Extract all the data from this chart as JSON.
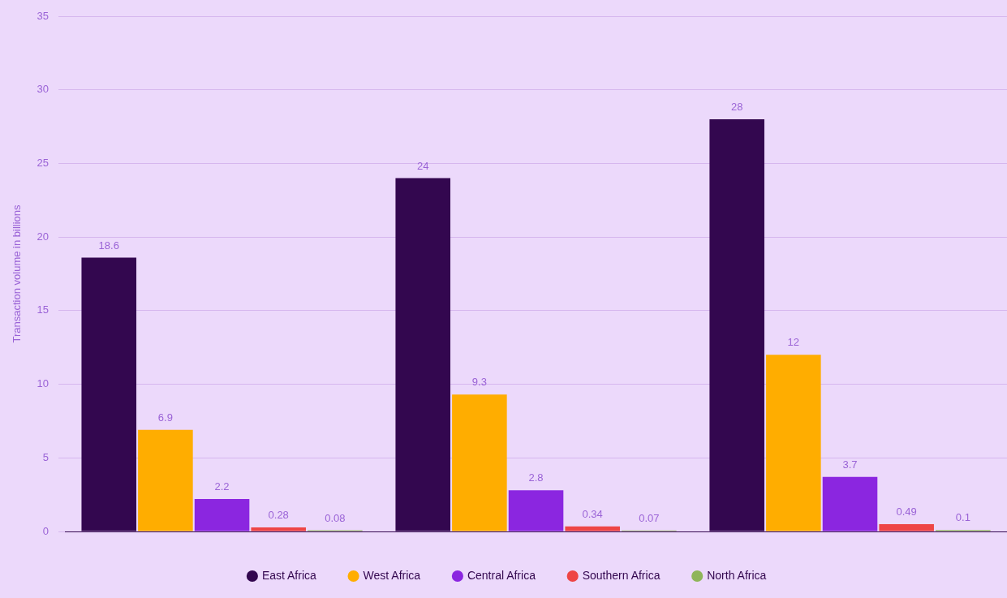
{
  "chart_data": {
    "type": "bar",
    "ylabel": "Transaction volume in billions",
    "categories": [
      null,
      null,
      null
    ],
    "series": [
      {
        "name": "East Africa",
        "color": "#33074f",
        "values": [
          18.6,
          24,
          28
        ]
      },
      {
        "name": "West Africa",
        "color": "#ffad00",
        "values": [
          6.9,
          9.3,
          12
        ]
      },
      {
        "name": "Central Africa",
        "color": "#8b26e0",
        "values": [
          2.2,
          2.8,
          3.7
        ]
      },
      {
        "name": "Southern Africa",
        "color": "#ee4545",
        "values": [
          0.28,
          0.34,
          0.49
        ]
      },
      {
        "name": "North Africa",
        "color": "#8fb55a",
        "values": [
          0.08,
          0.07,
          0.1
        ]
      }
    ],
    "ylim": [
      0,
      35
    ],
    "yticks": [
      0,
      5,
      10,
      15,
      20,
      25,
      30,
      35
    ],
    "grid": "y",
    "legend": "bottom",
    "data_labels": true,
    "tick_labels": "y"
  }
}
